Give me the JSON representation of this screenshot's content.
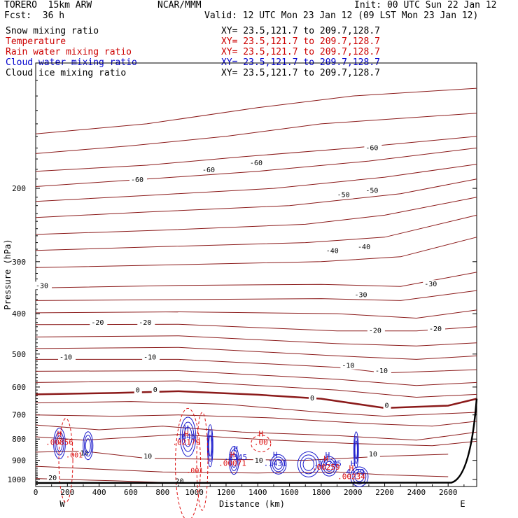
{
  "header": {
    "model": "TORERO  15km ARW",
    "fcst": "Fcst:  36 h",
    "center": "NCAR/MMM",
    "init": "Init: 00 UTC Sun 22 Jan 12",
    "valid": "Valid: 12 UTC Mon 23 Jan 12 (09 LST Mon 23 Jan 12)"
  },
  "legend": [
    {
      "label": "Snow mixing ratio",
      "xy": "",
      "color": "#000000"
    },
    {
      "label": "Temperature",
      "xy": "XY=  23.5,121.7 to 209.7,128.7",
      "color": "#cc0000"
    },
    {
      "label": "Rain water mixing ratio",
      "xy": "XY=  23.5,121.7 to 209.7,128.7",
      "color": "#cc0000"
    },
    {
      "label": "Cloud water mixing ratio",
      "xy": "XY=  23.5,121.7 to 209.7,128.7",
      "color": "#0000cc"
    },
    {
      "label": "Cloud ice mixing ratio",
      "xy": "XY=  23.5,121.7 to 209.7,128.7",
      "color": "#000000"
    }
  ],
  "snow_xy": "XY=  23.5,121.7 to 209.7,128.7",
  "chart_data": {
    "type": "contour",
    "xlabel": "Distance (km)",
    "ylabel": "Pressure (hPa)",
    "xlim": [
      0,
      2780
    ],
    "ylim": [
      1040,
      100
    ],
    "yscale": "log",
    "x_ticks": [
      0,
      200,
      400,
      600,
      800,
      1000,
      1200,
      1400,
      1600,
      1800,
      2000,
      2200,
      2400,
      2600
    ],
    "y_ticks": [
      200,
      300,
      400,
      500,
      600,
      700,
      800,
      900,
      1000
    ],
    "end_labels": {
      "left": "W",
      "right": "E"
    },
    "temperature_contour_labels": [
      {
        "x": 600,
        "p": 193,
        "t": "-60"
      },
      {
        "x": 1050,
        "p": 183,
        "t": "-60"
      },
      {
        "x": 1350,
        "p": 176,
        "t": "-60"
      },
      {
        "x": 2080,
        "p": 162,
        "t": "-60"
      },
      {
        "x": 1900,
        "p": 210,
        "t": "-50"
      },
      {
        "x": 2080,
        "p": 205,
        "t": "-50"
      },
      {
        "x": 1830,
        "p": 286,
        "t": "-40"
      },
      {
        "x": 2030,
        "p": 280,
        "t": "-40"
      },
      {
        "x": 0,
        "p": 347,
        "t": "-30"
      },
      {
        "x": 2010,
        "p": 365,
        "t": "-30"
      },
      {
        "x": 2450,
        "p": 344,
        "t": "-30"
      },
      {
        "x": 350,
        "p": 425,
        "t": "-20"
      },
      {
        "x": 650,
        "p": 425,
        "t": "-20"
      },
      {
        "x": 2100,
        "p": 445,
        "t": "-20"
      },
      {
        "x": 2480,
        "p": 440,
        "t": "-20"
      },
      {
        "x": 150,
        "p": 515,
        "t": "-10"
      },
      {
        "x": 680,
        "p": 515,
        "t": "-10"
      },
      {
        "x": 1930,
        "p": 540,
        "t": "-10"
      },
      {
        "x": 2140,
        "p": 555,
        "t": "-10"
      },
      {
        "x": 630,
        "p": 618,
        "t": "0"
      },
      {
        "x": 740,
        "p": 617,
        "t": "0"
      },
      {
        "x": 1730,
        "p": 646,
        "t": "0"
      },
      {
        "x": 2200,
        "p": 673,
        "t": "0"
      },
      {
        "x": 280,
        "p": 875,
        "t": "10"
      },
      {
        "x": 680,
        "p": 890,
        "t": "10"
      },
      {
        "x": 1380,
        "p": 912,
        "t": "10"
      },
      {
        "x": 2100,
        "p": 880,
        "t": "10"
      },
      {
        "x": 80,
        "p": 1005,
        "t": "20"
      },
      {
        "x": 880,
        "p": 1022,
        "t": "20"
      }
    ],
    "maxima_markers": [
      {
        "x": 150,
        "p": 820,
        "mark": "H",
        "value": ".00856",
        "field": "rain"
      },
      {
        "x": 950,
        "p": 795,
        "mark": "H",
        "value": ".646",
        "field": "cloud water"
      },
      {
        "x": 950,
        "p": 820,
        "mark": "H",
        "value": ".02179",
        "field": "rain"
      },
      {
        "x": 1420,
        "p": 820,
        "mark": "H",
        "value": ".00",
        "field": "rain"
      },
      {
        "x": 1260,
        "p": 890,
        "mark": "H",
        "value": ".2345",
        "field": "cloud water"
      },
      {
        "x": 1240,
        "p": 920,
        "mark": "H",
        "value": ".00071",
        "field": "rain"
      },
      {
        "x": 1510,
        "p": 920,
        "mark": "H",
        "value": ".1431",
        "field": "cloud water"
      },
      {
        "x": 1840,
        "p": 922,
        "mark": "H",
        "value": ".15245",
        "field": "cloud water"
      },
      {
        "x": 1830,
        "p": 940,
        "mark": "H",
        "value": ".00259",
        "field": "rain"
      },
      {
        "x": 2000,
        "p": 967,
        "mark": "H",
        "value": ".4479",
        "field": "cloud water"
      },
      {
        "x": 1990,
        "p": 990,
        "mark": "H",
        "value": ".00234",
        "field": "rain"
      }
    ],
    "rain_contour_labels": [
      {
        "x": 190,
        "p": 885,
        "t": ".001"
      },
      {
        "x": 950,
        "p": 965,
        "t": ".001"
      }
    ],
    "colors": {
      "temperature": "#8b1a1a",
      "cloud_water": "#1a1acc",
      "rain": "#dd1111",
      "terrain": "#000000"
    }
  }
}
